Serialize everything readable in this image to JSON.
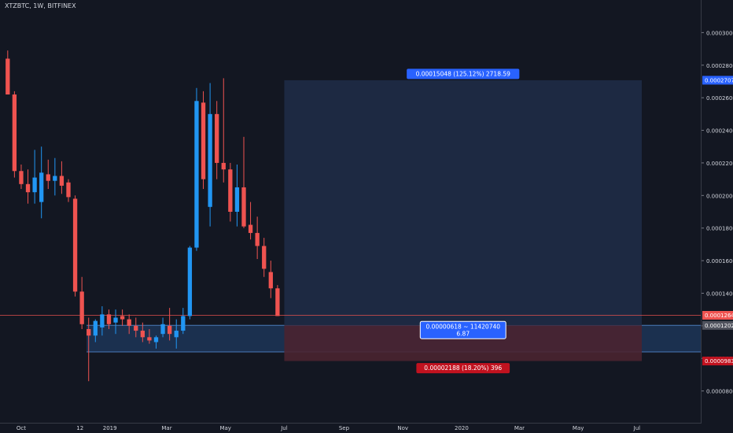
{
  "symbol": "XTZBTC, 1W, BITFINEX",
  "colors": {
    "background": "#131722",
    "bullish": "#2196f3",
    "bearish": "#ef5350",
    "axis_text": "#d1d4dc",
    "profit_zone": "#1e2a44",
    "loss_zone": "#4a2330",
    "entry_zone": "#1f3a5f",
    "label_blue": "#2962ff",
    "label_red": "#c1121f"
  },
  "chart_data": {
    "type": "candlestick",
    "title": "",
    "grid": false,
    "ylim": [
      6e-05,
      0.00032
    ],
    "xlim": [
      "2018-09-09",
      "2020-09-06"
    ],
    "y_ticks": [
      "0.00008000",
      "0.00010000",
      "0.00012000",
      "0.00014000",
      "0.00016000",
      "0.00018000",
      "0.00020000",
      "0.00022000",
      "0.00024000",
      "0.00026000",
      "0.00028000",
      "0.00030000"
    ],
    "x_ticks": [
      {
        "label": "Oct",
        "date": "2018-10-01"
      },
      {
        "label": "12",
        "date": "2018-12-01"
      },
      {
        "label": "2019",
        "date": "2019-01-01"
      },
      {
        "label": "Mar",
        "date": "2019-03-01"
      },
      {
        "label": "May",
        "date": "2019-05-01"
      },
      {
        "label": "Jul",
        "date": "2019-07-01"
      },
      {
        "label": "Sep",
        "date": "2019-09-01"
      },
      {
        "label": "Nov",
        "date": "2019-11-01"
      },
      {
        "label": "2020",
        "date": "2020-01-01"
      },
      {
        "label": "Mar",
        "date": "2020-03-01"
      },
      {
        "label": "May",
        "date": "2020-05-01"
      },
      {
        "label": "Jul",
        "date": "2020-07-01"
      }
    ],
    "candles": [
      {
        "date": "2018-09-17",
        "open": 0.000284,
        "high": 0.000289,
        "low": 0.000262,
        "close": 0.000262
      },
      {
        "date": "2018-09-24",
        "open": 0.000262,
        "high": 0.000264,
        "low": 0.000211,
        "close": 0.000215
      },
      {
        "date": "2018-10-01",
        "open": 0.000215,
        "high": 0.000219,
        "low": 0.000204,
        "close": 0.000207
      },
      {
        "date": "2018-10-08",
        "open": 0.000207,
        "high": 0.000216,
        "low": 0.000195,
        "close": 0.000202
      },
      {
        "date": "2018-10-15",
        "open": 0.000202,
        "high": 0.000228,
        "low": 0.000195,
        "close": 0.000211
      },
      {
        "date": "2018-10-22",
        "open": 0.000196,
        "high": 0.00023,
        "low": 0.000186,
        "close": 0.000214
      },
      {
        "date": "2018-10-29",
        "open": 0.000213,
        "high": 0.000222,
        "low": 0.000204,
        "close": 0.000209
      },
      {
        "date": "2018-11-05",
        "open": 0.000209,
        "high": 0.000223,
        "low": 0.0002,
        "close": 0.000212
      },
      {
        "date": "2018-11-12",
        "open": 0.000212,
        "high": 0.000221,
        "low": 0.000201,
        "close": 0.000206
      },
      {
        "date": "2018-11-19",
        "open": 0.000208,
        "high": 0.00021,
        "low": 0.000196,
        "close": 0.000199
      },
      {
        "date": "2018-11-26",
        "open": 0.000198,
        "high": 0.0002,
        "low": 0.000138,
        "close": 0.000141
      },
      {
        "date": "2018-12-03",
        "open": 0.000141,
        "high": 0.00015,
        "low": 0.000118,
        "close": 0.000121
      },
      {
        "date": "2018-12-10",
        "open": 0.000118,
        "high": 0.000125,
        "low": 8.6e-05,
        "close": 0.000114
      },
      {
        "date": "2018-12-17",
        "open": 0.000114,
        "high": 0.000124,
        "low": 0.00011,
        "close": 0.000123
      },
      {
        "date": "2018-12-24",
        "open": 0.000119,
        "high": 0.000132,
        "low": 0.000114,
        "close": 0.000127
      },
      {
        "date": "2018-12-31",
        "open": 0.000127,
        "high": 0.00013,
        "low": 0.000118,
        "close": 0.000121
      },
      {
        "date": "2019-01-07",
        "open": 0.000122,
        "high": 0.00013,
        "low": 0.000115,
        "close": 0.000125
      },
      {
        "date": "2019-01-14",
        "open": 0.000126,
        "high": 0.00013,
        "low": 0.00012,
        "close": 0.000124
      },
      {
        "date": "2019-01-21",
        "open": 0.000124,
        "high": 0.000127,
        "low": 0.000115,
        "close": 0.00012
      },
      {
        "date": "2019-01-28",
        "open": 0.00012,
        "high": 0.000125,
        "low": 0.000113,
        "close": 0.000117
      },
      {
        "date": "2019-02-04",
        "open": 0.000117,
        "high": 0.000122,
        "low": 0.00011,
        "close": 0.000113
      },
      {
        "date": "2019-02-11",
        "open": 0.000113,
        "high": 0.000118,
        "low": 0.000109,
        "close": 0.000111
      },
      {
        "date": "2019-02-18",
        "open": 0.00011,
        "high": 0.000114,
        "low": 0.000106,
        "close": 0.000113
      },
      {
        "date": "2019-02-25",
        "open": 0.000115,
        "high": 0.000125,
        "low": 0.000113,
        "close": 0.000121
      },
      {
        "date": "2019-03-04",
        "open": 0.00012,
        "high": 0.000131,
        "low": 0.000111,
        "close": 0.000115
      },
      {
        "date": "2019-03-11",
        "open": 0.000113,
        "high": 0.000124,
        "low": 0.000106,
        "close": 0.000117
      },
      {
        "date": "2019-03-18",
        "open": 0.000117,
        "high": 0.000131,
        "low": 0.000115,
        "close": 0.000126
      },
      {
        "date": "2019-03-25",
        "open": 0.000126,
        "high": 0.000169,
        "low": 0.000124,
        "close": 0.000168
      },
      {
        "date": "2019-04-01",
        "open": 0.000168,
        "high": 0.000266,
        "low": 0.000166,
        "close": 0.000258
      },
      {
        "date": "2019-04-08",
        "open": 0.000257,
        "high": 0.000264,
        "low": 0.000204,
        "close": 0.00021
      },
      {
        "date": "2019-04-15",
        "open": 0.000193,
        "high": 0.000269,
        "low": 0.000181,
        "close": 0.00025
      },
      {
        "date": "2019-04-22",
        "open": 0.00025,
        "high": 0.000258,
        "low": 0.00021,
        "close": 0.00022
      },
      {
        "date": "2019-04-29",
        "open": 0.00022,
        "high": 0.000272,
        "low": 0.000208,
        "close": 0.000216
      },
      {
        "date": "2019-05-06",
        "open": 0.000216,
        "high": 0.00022,
        "low": 0.000184,
        "close": 0.00019
      },
      {
        "date": "2019-05-13",
        "open": 0.00019,
        "high": 0.000219,
        "low": 0.000181,
        "close": 0.000205
      },
      {
        "date": "2019-05-20",
        "open": 0.000205,
        "high": 0.000236,
        "low": 0.00018,
        "close": 0.000181
      },
      {
        "date": "2019-05-27",
        "open": 0.000182,
        "high": 0.000196,
        "low": 0.000173,
        "close": 0.000177
      },
      {
        "date": "2019-06-03",
        "open": 0.000177,
        "high": 0.000187,
        "low": 0.000161,
        "close": 0.000169
      },
      {
        "date": "2019-06-10",
        "open": 0.000169,
        "high": 0.000174,
        "low": 0.00015,
        "close": 0.000155
      },
      {
        "date": "2019-06-17",
        "open": 0.000153,
        "high": 0.00016,
        "low": 0.000137,
        "close": 0.000143
      },
      {
        "date": "2019-06-24",
        "open": 0.000143,
        "high": 0.000145,
        "low": 0.000126,
        "close": 0.000126
      }
    ],
    "price_line": 0.00012645,
    "position": {
      "start": "2019-07-01",
      "end": "2020-07-06",
      "entry": 0.00012027,
      "entry_zone_low": 0.000104,
      "target": 0.00027075,
      "stop": 9.838e-05,
      "target_label": "0.00015048 (125.12%) 2718.59",
      "center_label_line1": "0.00000618 ~ 11420740",
      "center_label_line2": "6.87",
      "stop_label": "0.00002188 (18.20%) 396"
    },
    "price_tags": [
      {
        "value": 0.00027075,
        "label": "0.00027075",
        "color": "#2962ff"
      },
      {
        "value": 0.00012645,
        "label": "0.00012645",
        "color": "#ef5350"
      },
      {
        "value": 0.00012027,
        "label": "0.00012027",
        "color": "#50535e"
      },
      {
        "value": 9.838e-05,
        "label": "0.00009838",
        "color": "#c1121f"
      }
    ]
  }
}
